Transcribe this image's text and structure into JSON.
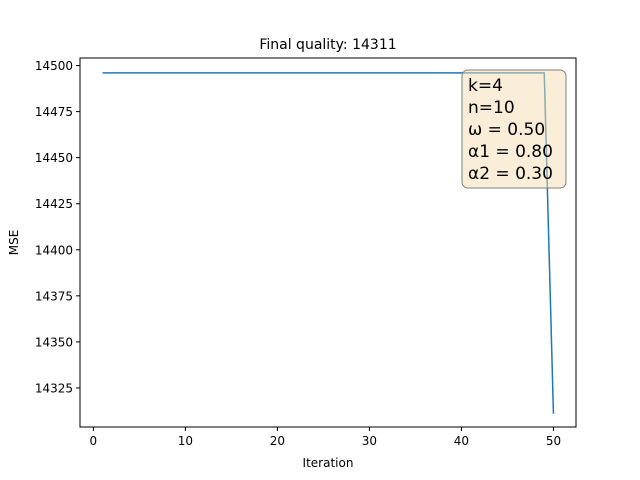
{
  "chart_data": {
    "type": "line",
    "title": "Final quality: 14311",
    "xlabel": "Iteration",
    "ylabel": "MSE",
    "xlim": [
      -1.45,
      52.45
    ],
    "ylim": [
      14303.8,
      14504.1
    ],
    "xticks": [
      0,
      10,
      20,
      30,
      40,
      50
    ],
    "yticks": [
      14325,
      14350,
      14375,
      14400,
      14425,
      14450,
      14475,
      14500
    ],
    "grid": false,
    "series": [
      {
        "color": "#1f77b4",
        "x": [
          1,
          49,
          50
        ],
        "y": [
          14496,
          14496,
          14311
        ]
      }
    ],
    "annotation": {
      "lines": [
        "k=4",
        "n=10",
        "ω = 0.50",
        "α1 = 0.80",
        "α2 = 0.30"
      ],
      "position": "top-right",
      "facecolor": "#f5deb3",
      "edgecolor": "#808080"
    }
  }
}
